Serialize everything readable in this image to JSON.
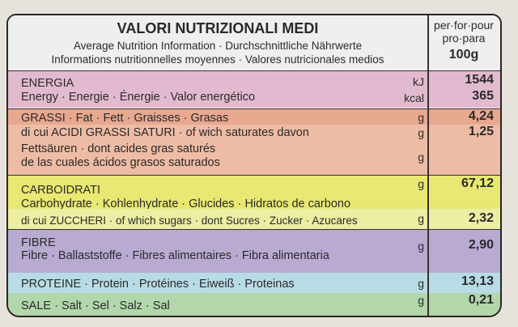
{
  "header": {
    "title": "VALORI NUTRIZIONALI MEDI",
    "subtitle_1": "Average Nutrition Information · Durchschnittliche Nährwerte",
    "subtitle_2": "Informations nutritionnelles moyennes · Valores nutricionales medios",
    "per_1": "per·for·pour",
    "per_2": "pro·para",
    "per_amount": "100g"
  },
  "rows": {
    "energy": {
      "label_1": "ENERGIA",
      "label_2": "Energy · Energie · Énergie · Valor energético",
      "unit_kj": "kJ",
      "unit_kcal": "kcal",
      "value_kj": "1544",
      "value_kcal": "365",
      "color": "#e2bad0"
    },
    "fat": {
      "label": "GRASSI · Fat · Fett · Graisses · Grasas",
      "unit": "g",
      "value": "4,24",
      "color": "#e8a890"
    },
    "saturates": {
      "label_1": "di cui ACIDI GRASSI SATURI · of wich saturates davon",
      "label_2": "Fettsäuren · dont acides gras saturés",
      "label_3": "de las cuales ácidos grasos saturados",
      "unit_1": "g",
      "unit_2": "g",
      "value": "1,25",
      "color": "#eebca4"
    },
    "carbs": {
      "label_1": "CARBOIDRATI",
      "label_2": "Carbohydrate · Kohlenhydrate · Glucides · Hidratos de carbono",
      "unit": "g",
      "value": "67,12",
      "color": "#e8e872"
    },
    "sugars": {
      "label": "di cui ZUCCHERI · of which sugars · dont Sucres · Zucker · Azucares",
      "unit": "g",
      "value": "2,32",
      "color": "#eceea2"
    },
    "fibre": {
      "label_1": "FIBRE",
      "label_2": "Fibre · Ballaststoffe · Fibres alimentaires · Fibra alimentaria",
      "unit": "g",
      "value": "2,90",
      "color": "#b9aad2"
    },
    "protein": {
      "label": "PROTEINE · Protein · Protéines · Eiweiß · Proteinas",
      "unit": "g",
      "value": "13,13",
      "color": "#b8dce6"
    },
    "salt": {
      "label": "SALE · Salt · Sel · Salz · Sal",
      "unit": "g",
      "value": "0,21",
      "color": "#b2d7aa"
    }
  }
}
